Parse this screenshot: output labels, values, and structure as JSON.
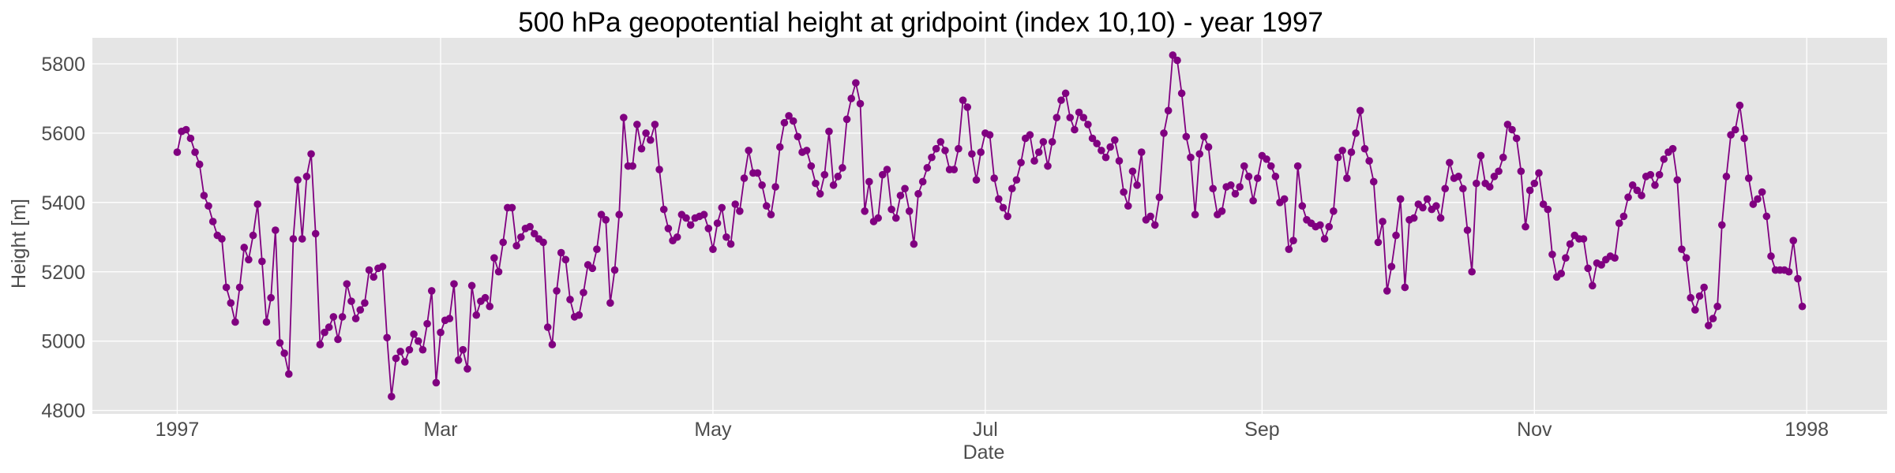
{
  "chart_data": {
    "type": "line",
    "title": "500 hPa geopotential height at gridpoint (index 10,10) - year 1997",
    "xlabel": "Date",
    "ylabel": "Height [m]",
    "xlim": [
      "1996-12-13",
      "1998-01-19"
    ],
    "ylim": [
      4790,
      5875
    ],
    "x_ticks": [
      {
        "date": "1997-01-01",
        "label": "1997"
      },
      {
        "date": "1997-03-01",
        "label": "Mar"
      },
      {
        "date": "1997-05-01",
        "label": "May"
      },
      {
        "date": "1997-07-01",
        "label": "Jul"
      },
      {
        "date": "1997-09-01",
        "label": "Sep"
      },
      {
        "date": "1997-11-01",
        "label": "Nov"
      },
      {
        "date": "1998-01-01",
        "label": "1998"
      }
    ],
    "y_ticks": [
      {
        "value": 4800,
        "label": "4800"
      },
      {
        "value": 5000,
        "label": "5000"
      },
      {
        "value": 5200,
        "label": "5200"
      },
      {
        "value": 5400,
        "label": "5400"
      },
      {
        "value": 5600,
        "label": "5600"
      },
      {
        "value": 5800,
        "label": "5800"
      }
    ],
    "grid": true,
    "marker": "circle",
    "colors": {
      "series": "#800080",
      "plot_background": "#e5e5e5",
      "grid": "#ffffff"
    },
    "series": [
      {
        "start_date": "1997-01-01",
        "step_days": 1,
        "values": [
          5545,
          5605,
          5610,
          5585,
          5545,
          5510,
          5420,
          5390,
          5345,
          5305,
          5295,
          5155,
          5110,
          5055,
          5155,
          5270,
          5235,
          5305,
          5395,
          5230,
          5055,
          5125,
          5320,
          4995,
          4965,
          4905,
          5295,
          5465,
          5295,
          5475,
          5540,
          5310,
          4990,
          5025,
          5040,
          5070,
          5005,
          5070,
          5165,
          5115,
          5065,
          5090,
          5110,
          5205,
          5185,
          5210,
          5215,
          5010,
          4840,
          4950,
          4970,
          4940,
          4975,
          5020,
          5000,
          4975,
          5050,
          5145,
          4880,
          5025,
          5060,
          5065,
          5165,
          4945,
          4975,
          4920,
          5160,
          5075,
          5115,
          5125,
          5100,
          5240,
          5200,
          5285,
          5385,
          5385,
          5275,
          5300,
          5325,
          5330,
          5310,
          5295,
          5285,
          5040,
          4990,
          5145,
          5255,
          5235,
          5120,
          5070,
          5075,
          5140,
          5220,
          5210,
          5265,
          5365,
          5350,
          5110,
          5205,
          5365,
          5645,
          5505,
          5505,
          5625,
          5555,
          5600,
          5580,
          5625,
          5495,
          5380,
          5325,
          5290,
          5300,
          5365,
          5355,
          5335,
          5355,
          5360,
          5365,
          5325,
          5265,
          5340,
          5385,
          5300,
          5280,
          5395,
          5375,
          5470,
          5550,
          5485,
          5485,
          5450,
          5390,
          5365,
          5445,
          5560,
          5630,
          5650,
          5635,
          5590,
          5545,
          5550,
          5505,
          5455,
          5425,
          5480,
          5605,
          5450,
          5475,
          5500,
          5640,
          5700,
          5745,
          5685,
          5375,
          5460,
          5345,
          5355,
          5480,
          5495,
          5380,
          5355,
          5420,
          5440,
          5375,
          5280,
          5425,
          5460,
          5500,
          5530,
          5555,
          5575,
          5550,
          5495,
          5495,
          5555,
          5695,
          5675,
          5540,
          5465,
          5545,
          5600,
          5595,
          5470,
          5410,
          5385,
          5360,
          5440,
          5465,
          5515,
          5585,
          5595,
          5520,
          5545,
          5575,
          5505,
          5575,
          5645,
          5695,
          5715,
          5645,
          5610,
          5660,
          5645,
          5625,
          5585,
          5570,
          5550,
          5530,
          5560,
          5580,
          5520,
          5430,
          5390,
          5490,
          5450,
          5545,
          5350,
          5360,
          5335,
          5415,
          5600,
          5665,
          5825,
          5810,
          5715,
          5590,
          5530,
          5365,
          5540,
          5590,
          5560,
          5440,
          5365,
          5375,
          5445,
          5450,
          5425,
          5445,
          5505,
          5475,
          5405,
          5470,
          5535,
          5525,
          5505,
          5475,
          5400,
          5410,
          5265,
          5290,
          5505,
          5390,
          5350,
          5340,
          5330,
          5335,
          5295,
          5330,
          5375,
          5530,
          5550,
          5470,
          5545,
          5600,
          5665,
          5555,
          5520,
          5460,
          5285,
          5345,
          5145,
          5215,
          5305,
          5410,
          5155,
          5350,
          5355,
          5395,
          5385,
          5410,
          5380,
          5390,
          5355,
          5440,
          5515,
          5470,
          5475,
          5440,
          5320,
          5200,
          5455,
          5535,
          5455,
          5445,
          5475,
          5490,
          5530,
          5625,
          5610,
          5585,
          5490,
          5330,
          5435,
          5455,
          5485,
          5395,
          5380,
          5250,
          5185,
          5195,
          5240,
          5280,
          5305,
          5295,
          5295,
          5210,
          5160,
          5225,
          5220,
          5235,
          5245,
          5240,
          5340,
          5360,
          5415,
          5450,
          5435,
          5420,
          5475,
          5480,
          5450,
          5480,
          5525,
          5545,
          5555,
          5465,
          5265,
          5240,
          5125,
          5090,
          5130,
          5155,
          5045,
          5065,
          5100,
          5335,
          5475,
          5595,
          5610,
          5680,
          5585,
          5470,
          5395,
          5410,
          5430,
          5360,
          5245,
          5205,
          5205,
          5205,
          5200,
          5290,
          5180,
          5100
        ]
      }
    ]
  }
}
